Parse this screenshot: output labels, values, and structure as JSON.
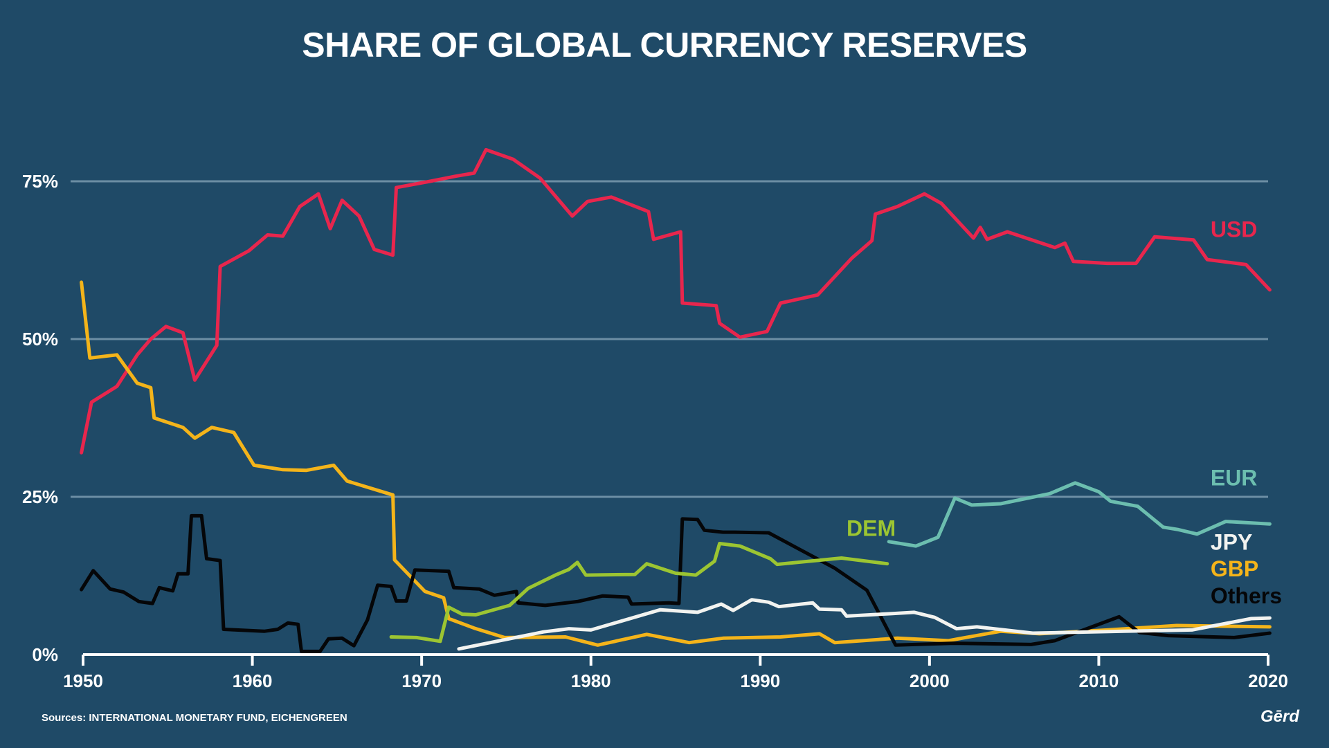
{
  "chart_data": {
    "type": "line",
    "title": "SHARE OF GLOBAL CURRENCY RESERVES",
    "source": "Sources: INTERNATIONAL MONETARY FUND, EICHENGREEN",
    "brand": "Gērd",
    "xlim": [
      1950,
      2020
    ],
    "ylim": [
      0,
      80
    ],
    "y_ticks": [
      {
        "value": 0,
        "label": "0%"
      },
      {
        "value": 25,
        "label": "25%"
      },
      {
        "value": 50,
        "label": "50%"
      },
      {
        "value": 75,
        "label": "75%"
      }
    ],
    "x_ticks": [
      {
        "value": 1950,
        "label": "1950"
      },
      {
        "value": 1960,
        "label": "1960"
      },
      {
        "value": 1970,
        "label": "1970"
      },
      {
        "value": 1980,
        "label": "1980"
      },
      {
        "value": 1990,
        "label": "1990"
      },
      {
        "value": 2000,
        "label": "2000"
      },
      {
        "value": 2010,
        "label": "2010"
      },
      {
        "value": 2020,
        "label": "2020"
      }
    ],
    "grid": true,
    "axis_color": "#ffffff",
    "grid_color": "#6c8ea4",
    "series": [
      {
        "name": "USD",
        "color": "#e8264d",
        "label": {
          "x": 2016.6,
          "y": 66.2
        },
        "points": [
          [
            1949.9,
            32
          ],
          [
            1950.5,
            40
          ],
          [
            1952,
            42.5
          ],
          [
            1953.2,
            47.5
          ],
          [
            1954,
            50
          ],
          [
            1954.9,
            52
          ],
          [
            1955.9,
            51
          ],
          [
            1956.6,
            43.5
          ],
          [
            1957.9,
            49
          ],
          [
            1958.1,
            61.5
          ],
          [
            1959.8,
            64
          ],
          [
            1960.9,
            66.5
          ],
          [
            1961.8,
            66.3
          ],
          [
            1962.8,
            71
          ],
          [
            1963.9,
            73
          ],
          [
            1964.6,
            67.5
          ],
          [
            1965.3,
            72
          ],
          [
            1966.3,
            69.5
          ],
          [
            1967.2,
            64.2
          ],
          [
            1968.3,
            63.3
          ],
          [
            1968.5,
            74
          ],
          [
            1970.5,
            75
          ],
          [
            1972,
            75.8
          ],
          [
            1973.1,
            76.3
          ],
          [
            1973.8,
            80
          ],
          [
            1975.4,
            78.5
          ],
          [
            1977,
            75.5
          ],
          [
            1978.9,
            69.5
          ],
          [
            1979.8,
            71.8
          ],
          [
            1981.2,
            72.5
          ],
          [
            1983.4,
            70.2
          ],
          [
            1983.7,
            65.8
          ],
          [
            1985.3,
            67
          ],
          [
            1985.4,
            55.7
          ],
          [
            1987.4,
            55.3
          ],
          [
            1987.6,
            52.5
          ],
          [
            1988.8,
            50.3
          ],
          [
            1990.4,
            51.2
          ],
          [
            1991.2,
            55.7
          ],
          [
            1993.4,
            57
          ],
          [
            1995.4,
            62.8
          ],
          [
            1996.6,
            65.6
          ],
          [
            1996.8,
            69.8
          ],
          [
            1998.1,
            71
          ],
          [
            1999.7,
            73
          ],
          [
            2000.7,
            71.5
          ],
          [
            2002.6,
            66
          ],
          [
            2003,
            67.7
          ],
          [
            2003.4,
            65.8
          ],
          [
            2004.6,
            67
          ],
          [
            2007.4,
            64.5
          ],
          [
            2008,
            65.2
          ],
          [
            2008.5,
            62.3
          ],
          [
            2010.5,
            62
          ],
          [
            2012.2,
            62
          ],
          [
            2013.3,
            66.2
          ],
          [
            2015.6,
            65.7
          ],
          [
            2016.4,
            62.6
          ],
          [
            2018.7,
            61.8
          ],
          [
            2020.1,
            57.8
          ]
        ]
      },
      {
        "name": "GBP",
        "color": "#f4b41a",
        "label": {
          "x": 2016.6,
          "y": 12.4
        },
        "points": [
          [
            1949.9,
            59
          ],
          [
            1950.4,
            47
          ],
          [
            1952,
            47.5
          ],
          [
            1953.2,
            43
          ],
          [
            1954,
            42.3
          ],
          [
            1954.2,
            37.5
          ],
          [
            1955.9,
            36
          ],
          [
            1956.6,
            34.3
          ],
          [
            1957.6,
            36
          ],
          [
            1958.9,
            35.2
          ],
          [
            1960.1,
            30
          ],
          [
            1961.8,
            29.3
          ],
          [
            1963.2,
            29.2
          ],
          [
            1964.8,
            30
          ],
          [
            1965.6,
            27.5
          ],
          [
            1968.3,
            25.3
          ],
          [
            1968.4,
            15
          ],
          [
            1970.2,
            10
          ],
          [
            1971.3,
            9
          ],
          [
            1971.6,
            5.7
          ],
          [
            1973.1,
            4.2
          ],
          [
            1974.9,
            2.7
          ],
          [
            1978.5,
            2.8
          ],
          [
            1980.4,
            1.5
          ],
          [
            1983.3,
            3.2
          ],
          [
            1985.8,
            1.9
          ],
          [
            1987.8,
            2.6
          ],
          [
            1991.2,
            2.8
          ],
          [
            1993.5,
            3.3
          ],
          [
            1994.4,
            1.9
          ],
          [
            1998.1,
            2.6
          ],
          [
            2001.1,
            2.2
          ],
          [
            2004.2,
            3.7
          ],
          [
            2006.5,
            3.3
          ],
          [
            2010.5,
            3.9
          ],
          [
            2014.6,
            4.6
          ],
          [
            2020.1,
            4.4
          ]
        ]
      },
      {
        "name": "Others",
        "color": "#050608",
        "label": {
          "x": 2016.6,
          "y": 8.1
        },
        "points": [
          [
            1949.9,
            10.3
          ],
          [
            1950.6,
            13.3
          ],
          [
            1951.6,
            10.4
          ],
          [
            1952.4,
            9.9
          ],
          [
            1953.3,
            8.4
          ],
          [
            1954.1,
            8.1
          ],
          [
            1954.5,
            10.6
          ],
          [
            1955.3,
            10.1
          ],
          [
            1955.6,
            12.8
          ],
          [
            1956.2,
            12.8
          ],
          [
            1956.4,
            22
          ],
          [
            1957,
            22
          ],
          [
            1957.3,
            15.2
          ],
          [
            1958.1,
            14.9
          ],
          [
            1958.3,
            4
          ],
          [
            1960.7,
            3.7
          ],
          [
            1961.5,
            4
          ],
          [
            1962.1,
            5
          ],
          [
            1962.7,
            4.8
          ],
          [
            1962.9,
            0.5
          ],
          [
            1964,
            0.5
          ],
          [
            1964.5,
            2.5
          ],
          [
            1965.3,
            2.6
          ],
          [
            1966,
            1.4
          ],
          [
            1966.8,
            5.5
          ],
          [
            1967.4,
            11
          ],
          [
            1968.2,
            10.8
          ],
          [
            1968.5,
            8.5
          ],
          [
            1969.1,
            8.5
          ],
          [
            1969.6,
            13.4
          ],
          [
            1971.6,
            13.2
          ],
          [
            1971.9,
            10.6
          ],
          [
            1973.4,
            10.4
          ],
          [
            1974.3,
            9.4
          ],
          [
            1975.6,
            10
          ],
          [
            1975.7,
            8.2
          ],
          [
            1977.3,
            7.8
          ],
          [
            1979.2,
            8.4
          ],
          [
            1980.7,
            9.3
          ],
          [
            1982.2,
            9.1
          ],
          [
            1982.4,
            8
          ],
          [
            1984.6,
            8.2
          ],
          [
            1985.2,
            8.1
          ],
          [
            1985.4,
            21.5
          ],
          [
            1986.3,
            21.4
          ],
          [
            1986.7,
            19.7
          ],
          [
            1987.8,
            19.4
          ],
          [
            1988.5,
            19.4
          ],
          [
            1990.5,
            19.3
          ],
          [
            1994.4,
            13.7
          ],
          [
            1996.3,
            10.2
          ],
          [
            1998,
            1.5
          ],
          [
            2001.4,
            1.8
          ],
          [
            2006,
            1.6
          ],
          [
            2007.4,
            2.2
          ],
          [
            2009.6,
            4.4
          ],
          [
            2011.2,
            6
          ],
          [
            2012.4,
            3.5
          ],
          [
            2014.1,
            3
          ],
          [
            2018,
            2.7
          ],
          [
            2020.1,
            3.4
          ]
        ]
      },
      {
        "name": "JPY",
        "color": "#f2f3f0",
        "label": {
          "x": 2016.6,
          "y": 16.6
        },
        "points": [
          [
            1972.2,
            0.9
          ],
          [
            1977.2,
            3.6
          ],
          [
            1978.7,
            4.1
          ],
          [
            1980,
            3.9
          ],
          [
            1984.1,
            7.1
          ],
          [
            1986.3,
            6.7
          ],
          [
            1987.7,
            8
          ],
          [
            1988.4,
            7
          ],
          [
            1989.5,
            8.7
          ],
          [
            1990.5,
            8.3
          ],
          [
            1991.1,
            7.6
          ],
          [
            1993.1,
            8.2
          ],
          [
            1993.5,
            7.2
          ],
          [
            1994.8,
            7.1
          ],
          [
            1995.1,
            6.1
          ],
          [
            1997.8,
            6.5
          ],
          [
            1999.1,
            6.7
          ],
          [
            2000.3,
            5.9
          ],
          [
            2001.6,
            4.1
          ],
          [
            2002.8,
            4.4
          ],
          [
            2006.1,
            3.4
          ],
          [
            2011.5,
            3.7
          ],
          [
            2013.6,
            3.8
          ],
          [
            2015.5,
            3.9
          ],
          [
            2019,
            5.7
          ],
          [
            2020.1,
            5.8
          ]
        ]
      },
      {
        "name": "DEM",
        "color": "#9cc532",
        "label": {
          "x": 1995.1,
          "y": 18.8
        },
        "points": [
          [
            1968.2,
            2.8
          ],
          [
            1969.7,
            2.7
          ],
          [
            1971.1,
            2.1
          ],
          [
            1971.6,
            7.5
          ],
          [
            1972.4,
            6.4
          ],
          [
            1973.2,
            6.3
          ],
          [
            1975.2,
            7.8
          ],
          [
            1976.3,
            10.5
          ],
          [
            1977.9,
            12.6
          ],
          [
            1978.7,
            13.5
          ],
          [
            1979.2,
            14.6
          ],
          [
            1979.7,
            12.6
          ],
          [
            1982.6,
            12.7
          ],
          [
            1983.3,
            14.4
          ],
          [
            1985,
            12.9
          ],
          [
            1986.2,
            12.6
          ],
          [
            1987.3,
            14.8
          ],
          [
            1987.6,
            17.6
          ],
          [
            1988.8,
            17.2
          ],
          [
            1990.6,
            15.2
          ],
          [
            1991,
            14.3
          ],
          [
            1994.8,
            15.3
          ],
          [
            1997.5,
            14.4
          ]
        ]
      },
      {
        "name": "EUR",
        "color": "#6cbeaf",
        "label": {
          "x": 2016.6,
          "y": 26.8
        },
        "points": [
          [
            1997.6,
            17.9
          ],
          [
            1999.2,
            17.2
          ],
          [
            2000.5,
            18.6
          ],
          [
            2001.5,
            24.8
          ],
          [
            2002.5,
            23.7
          ],
          [
            2004.2,
            23.9
          ],
          [
            2007.1,
            25.5
          ],
          [
            2008.6,
            27.2
          ],
          [
            2010,
            25.8
          ],
          [
            2010.7,
            24.3
          ],
          [
            2012.3,
            23.5
          ],
          [
            2013.8,
            20.2
          ],
          [
            2014.7,
            19.8
          ],
          [
            2015.8,
            19.1
          ],
          [
            2017.5,
            21.1
          ],
          [
            2020.1,
            20.7
          ]
        ]
      }
    ]
  }
}
